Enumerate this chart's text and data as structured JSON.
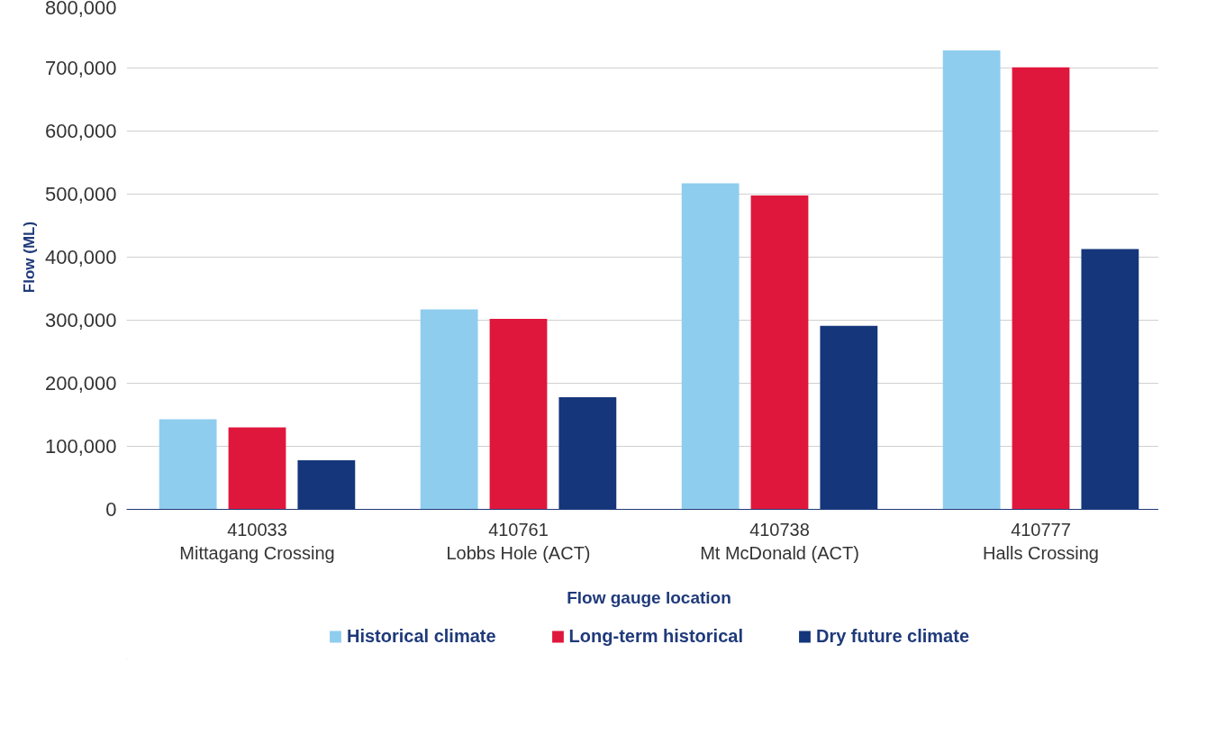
{
  "chart_data": {
    "type": "bar",
    "xlabel": "Flow gauge location",
    "ylabel": "Flow (ML)",
    "categories": [
      "410033\nMittagang Crossing",
      "410761\nLobbs Hole (ACT)",
      "410738\nMt McDonald (ACT)",
      "410777\nHalls Crossing"
    ],
    "series": [
      {
        "name": "Historical climate",
        "color": "#8ecdee",
        "values": [
          143000,
          317000,
          517000,
          728000
        ]
      },
      {
        "name": "Long-term historical",
        "color": "#e0173c",
        "values": [
          130000,
          302000,
          498000,
          701000
        ]
      },
      {
        "name": "Dry future climate",
        "color": "#15367a",
        "values": [
          78000,
          178000,
          291000,
          413000
        ]
      }
    ],
    "ylim": [
      0,
      800000
    ],
    "yticks": [
      {
        "value": 0,
        "label": "0"
      },
      {
        "value": 100000,
        "label": "100,000"
      },
      {
        "value": 200000,
        "label": "200,000"
      },
      {
        "value": 300000,
        "label": "300,000"
      },
      {
        "value": 400000,
        "label": "400,000"
      },
      {
        "value": 500000,
        "label": "500,000"
      },
      {
        "value": 600000,
        "label": "600,000"
      },
      {
        "value": 700000,
        "label": "700,000"
      },
      {
        "value": 800000,
        "label": "800,000"
      }
    ],
    "grid": "y",
    "legend": "bottom"
  }
}
